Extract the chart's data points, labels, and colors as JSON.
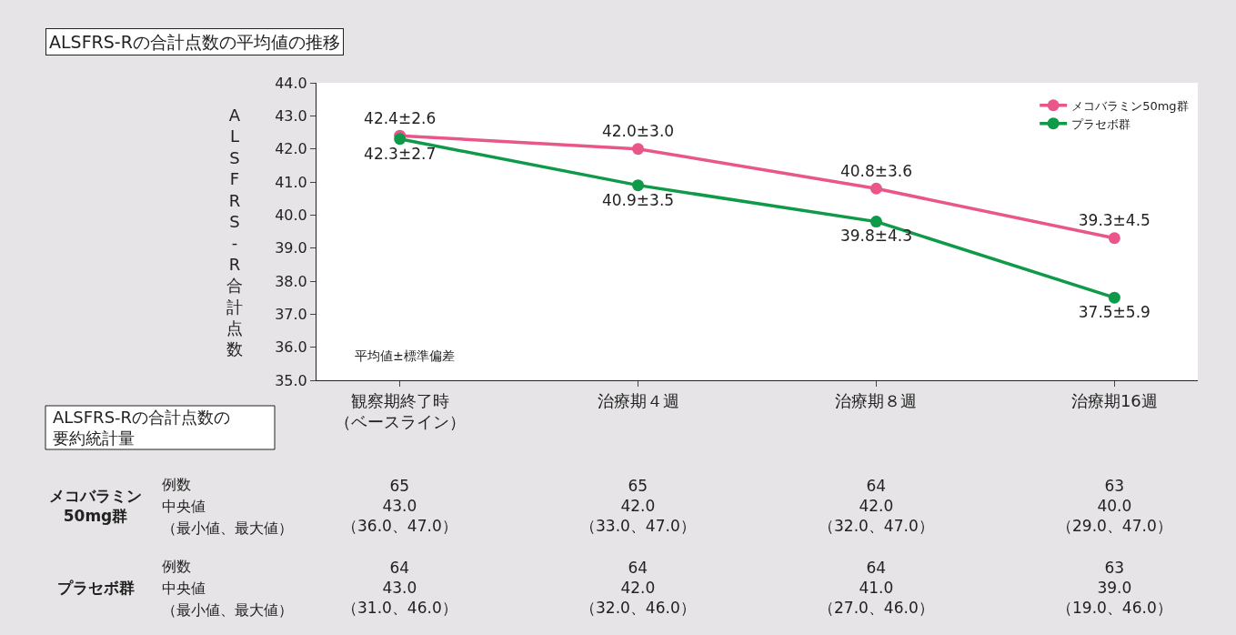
{
  "chart_data": {
    "type": "line",
    "title": "ALSFRS-Rの合計点数の平均値の推移",
    "ylabel": "ALSFRS-R合計点数",
    "categories": [
      "観察期終了時（ベースライン）",
      "治療期４週",
      "治療期８週",
      "治療期16週"
    ],
    "series": [
      {
        "name": "メコバラミン50mg群",
        "color": "#e8568a",
        "values": [
          42.4,
          42.0,
          40.8,
          39.3
        ],
        "value_labels": [
          "42.4±2.6",
          "42.0±3.0",
          "40.8±3.6",
          "39.3±4.5"
        ]
      },
      {
        "name": "プラセボ群",
        "color": "#0e9a48",
        "values": [
          42.3,
          40.9,
          39.8,
          37.5
        ],
        "value_labels": [
          "42.3±2.7",
          "40.9±3.5",
          "39.8±4.3",
          "37.5±5.9"
        ]
      }
    ],
    "ylim": [
      35,
      44
    ],
    "yticks": [
      {
        "value": 35,
        "label": "35.0"
      },
      {
        "value": 36,
        "label": "36.0"
      },
      {
        "value": 37,
        "label": "37.0"
      },
      {
        "value": 38,
        "label": "38.0"
      },
      {
        "value": 39,
        "label": "39.0"
      },
      {
        "value": 40,
        "label": "40.0"
      },
      {
        "value": 41,
        "label": "41.0"
      },
      {
        "value": 42,
        "label": "42.0"
      },
      {
        "value": 43,
        "label": "43.0"
      },
      {
        "value": 44,
        "label": "44.0"
      }
    ],
    "legend": "top right",
    "marker": "circle",
    "line_style": "solid",
    "annotations": [
      "平均値±標準偏差",
      "ALSFRS-Rの合計点数の",
      "要約統計量",
      "メコバラミン\n50mg群",
      "例数",
      "中央値",
      "（最小値、最大値）",
      "65\n43.0\n（36.0、47.0）",
      "65\n42.0\n（33.0、47.0）",
      "64\n42.0\n（32.0、47.0）",
      "63\n40.0\n（29.0、47.0）",
      "プラセボ群",
      "例数",
      "中央値",
      "（最小値、最大値）",
      "64\n43.0\n（31.0、46.0）",
      "64\n42.0\n（32.0、46.0）",
      "64\n41.0\n（27.0、46.0）",
      "63\n39.0\n（19.0、46.0）"
    ]
  }
}
